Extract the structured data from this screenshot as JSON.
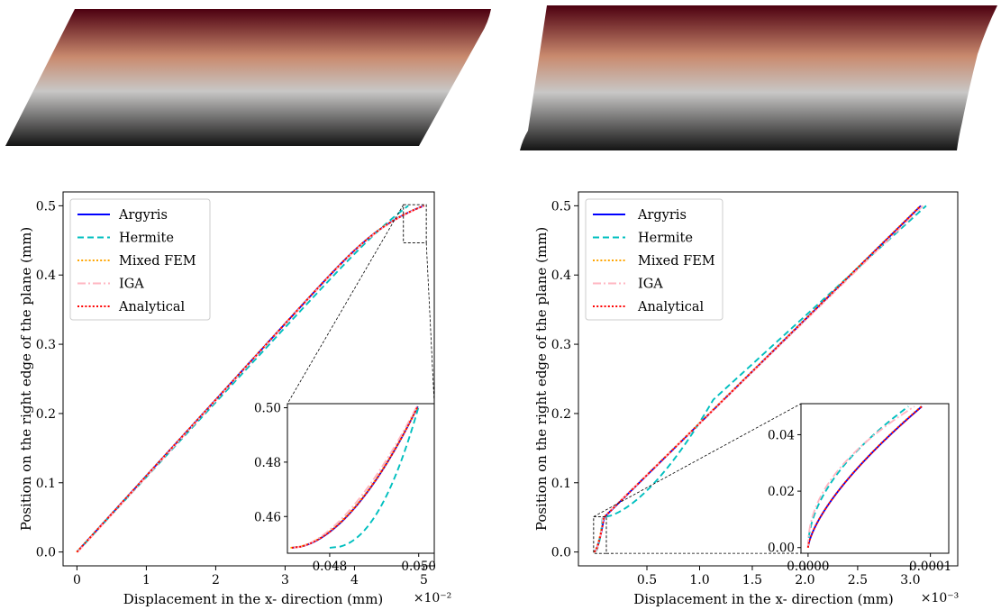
{
  "colors": {
    "Argyris": "#0000ff",
    "Hermite": "#00bfbf",
    "Mixed FEM": "#ffa500",
    "IGA": "#ffb6c1",
    "Analytical": "#ff0000",
    "colormap": [
      "#5a0010",
      "#c7876a",
      "#c8c8c8",
      "#1a1a1a"
    ]
  },
  "chart_data": [
    {
      "type": "line",
      "xlabel": "Displacement in the x- direction (mm)",
      "ylabel": "Position on the right edge of the plane (mm)",
      "x_multiplier": "×10⁻²",
      "xlim": [
        -0.2,
        5.15
      ],
      "ylim": [
        -0.02,
        0.52
      ],
      "xticks": [
        "0",
        "1",
        "2",
        "3",
        "4",
        "5"
      ],
      "yticks": [
        "0.0",
        "0.1",
        "0.2",
        "0.3",
        "0.4",
        "0.5"
      ],
      "legend": "upper-left",
      "series": [
        {
          "name": "Argyris",
          "style": "solid"
        },
        {
          "name": "Hermite",
          "style": "dashed"
        },
        {
          "name": "Mixed FEM",
          "style": "dotted"
        },
        {
          "name": "IGA",
          "style": "dashdot"
        },
        {
          "name": "Analytical",
          "style": "dotted"
        }
      ],
      "inset": {
        "xlim": [
          0.04705,
          0.05035
        ],
        "ylim": [
          0.4465,
          0.5015
        ],
        "xticks": [
          "0.048",
          "0.050"
        ],
        "yticks": [
          "0.46",
          "0.48",
          "0.50"
        ]
      }
    },
    {
      "type": "line",
      "xlabel": "Displacement in the x- direction (mm)",
      "ylabel": "Position on the right edge of the plane (mm)",
      "x_multiplier": "×10⁻³",
      "xlim": [
        -0.15,
        3.45
      ],
      "ylim": [
        -0.02,
        0.52
      ],
      "xticks": [
        "0.5",
        "1.0",
        "1.5",
        "2.0",
        "2.5",
        "3.0"
      ],
      "yticks": [
        "0.0",
        "0.1",
        "0.2",
        "0.3",
        "0.4",
        "0.5"
      ],
      "legend": "upper-left",
      "series": [
        {
          "name": "Argyris",
          "style": "solid"
        },
        {
          "name": "Hermite",
          "style": "dashed"
        },
        {
          "name": "Mixed FEM",
          "style": "dotted"
        },
        {
          "name": "IGA",
          "style": "dashdot"
        },
        {
          "name": "Analytical",
          "style": "dotted"
        }
      ],
      "inset": {
        "xlim": [
          -5.8e-06,
          0.000115
        ],
        "ylim": [
          -0.002,
          0.051
        ],
        "xticks": [
          "0.0000",
          "0.0001"
        ],
        "yticks": [
          "0.00",
          "0.02",
          "0.04"
        ]
      }
    }
  ]
}
